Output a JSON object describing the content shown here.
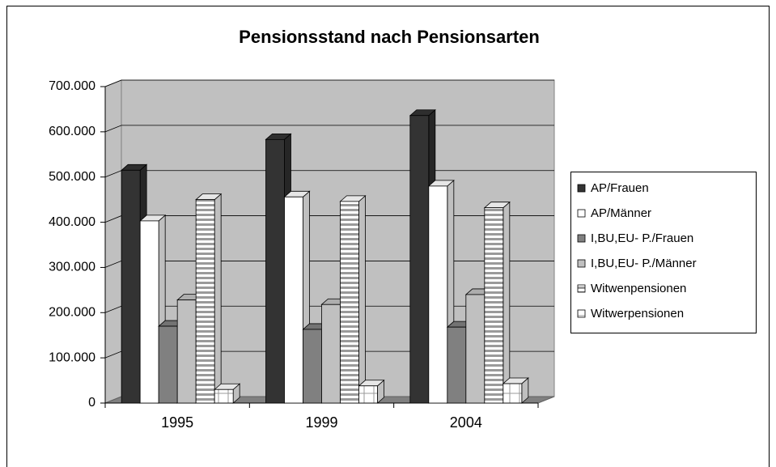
{
  "chart_data": {
    "type": "bar3d",
    "title": "Pensionsstand nach Pensionsarten",
    "categories": [
      "1995",
      "1999",
      "2004"
    ],
    "series": [
      {
        "name": "AP/Frauen",
        "color": "#333333",
        "values": [
          515000,
          583000,
          636000
        ]
      },
      {
        "name": "AP/Männer",
        "color": "#ffffff",
        "values": [
          403000,
          456000,
          480000
        ]
      },
      {
        "name": "I,BU,EU- P./Frauen",
        "color": "#808080",
        "values": [
          170000,
          163000,
          168000
        ]
      },
      {
        "name": "I,BU,EU- P./Männer",
        "color": "#c0c0c0",
        "values": [
          228000,
          218000,
          240000
        ]
      },
      {
        "name": "Witwenpensionen",
        "color": "#ffffff",
        "pattern": "horizontal-stripes",
        "values": [
          450000,
          446000,
          432000
        ]
      },
      {
        "name": "Witwerpensionen",
        "color": "#ffffff",
        "pattern": "grid",
        "values": [
          30000,
          38000,
          43000
        ]
      }
    ],
    "ylim": [
      0,
      700000
    ],
    "yticks": [
      0,
      {
        "value": 100000,
        "label": "100.000"
      },
      {
        "value": 200000,
        "label": "200.000"
      },
      {
        "value": 300000,
        "label": "300.000"
      },
      {
        "value": 400000,
        "label": "400.000"
      },
      {
        "value": 500000,
        "label": "500.000"
      },
      {
        "value": 600000,
        "label": "600.000"
      },
      {
        "value": 700000,
        "label": "700.000"
      }
    ],
    "grid": true,
    "legend": "right"
  }
}
